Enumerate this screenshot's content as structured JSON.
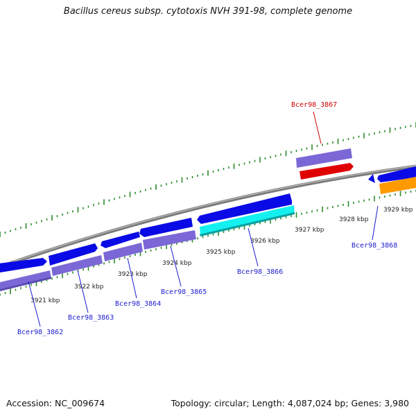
{
  "title": "Bacillus cereus subsp. cytotoxis NVH 391-98, complete genome",
  "footer": {
    "accession": "Accession: NC_009674",
    "summary": "Topology: circular; Length: 4,087,024 bp; Genes: 3,980"
  },
  "colors": {
    "backbone": "#8a8a8a",
    "tick": "#2a8a2a",
    "gene_blue": "#0a0ae6",
    "gene_purple": "#7b68d6",
    "gene_red": "#e00000",
    "gene_cyan": "#14f0f0",
    "gene_orange": "#ff9a00",
    "label_blue": "#1a1ad0",
    "label_red": "#d00000"
  },
  "scale_labels": [
    "3921 kbp",
    "3922 kbp",
    "3923 kbp",
    "3924 kbp",
    "3925 kbp",
    "3926 kbp",
    "3927 kbp",
    "3928 kbp",
    "3929 kbp"
  ],
  "gene_labels": [
    {
      "text": "Bcer98_3862",
      "color": "blue"
    },
    {
      "text": "Bcer98_3863",
      "color": "blue"
    },
    {
      "text": "Bcer98_3864",
      "color": "blue"
    },
    {
      "text": "Bcer98_3865",
      "color": "blue"
    },
    {
      "text": "Bcer98_3866",
      "color": "blue"
    },
    {
      "text": "Bcer98_3867",
      "color": "red"
    },
    {
      "text": "Bcer98_3868",
      "color": "blue"
    }
  ]
}
